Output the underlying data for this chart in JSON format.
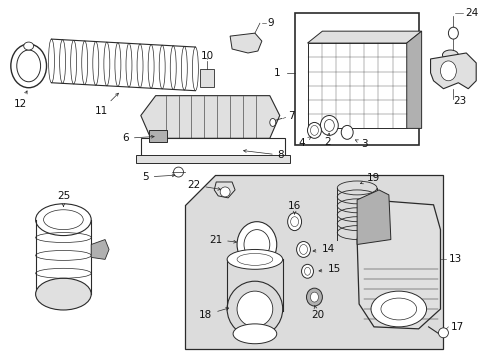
{
  "bg_color": "#ffffff",
  "line_color": "#2a2a2a",
  "label_color": "#111111",
  "fig_width": 4.89,
  "fig_height": 3.6,
  "dpi": 100,
  "gray_fill": "#c8c8c8",
  "light_gray": "#e0e0e0",
  "mid_gray": "#b0b0b0",
  "shade_fill": "#dcdcdc"
}
